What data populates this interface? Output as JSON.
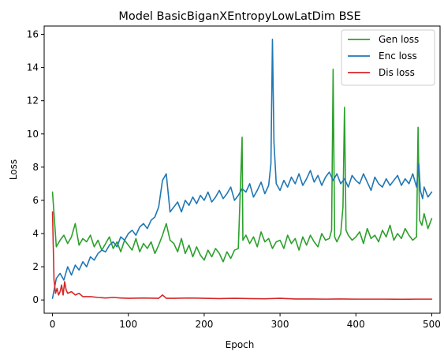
{
  "chart_data": {
    "type": "line",
    "title": "Model BasicBiganXEntropyLowLatDim BSE",
    "xlabel": "Epoch",
    "ylabel": "Loss",
    "xlim": [
      -11,
      511
    ],
    "ylim": [
      -0.8,
      16.5
    ],
    "xticks": [
      0,
      100,
      200,
      300,
      400,
      500
    ],
    "yticks": [
      0,
      2,
      4,
      6,
      8,
      10,
      12,
      14,
      16
    ],
    "grid": false,
    "legend_position": "top-right",
    "series": [
      {
        "name": "Gen loss",
        "color": "#2ca02c",
        "x": [
          0,
          5,
          10,
          15,
          20,
          25,
          30,
          35,
          40,
          45,
          50,
          55,
          60,
          65,
          70,
          75,
          80,
          85,
          90,
          95,
          100,
          105,
          110,
          115,
          120,
          125,
          130,
          135,
          140,
          145,
          150,
          155,
          160,
          165,
          170,
          175,
          180,
          185,
          190,
          195,
          200,
          205,
          210,
          215,
          220,
          225,
          230,
          235,
          240,
          245,
          250,
          251,
          255,
          260,
          265,
          270,
          275,
          280,
          285,
          290,
          295,
          300,
          305,
          310,
          315,
          320,
          325,
          330,
          335,
          340,
          345,
          350,
          355,
          360,
          365,
          368,
          370,
          372,
          375,
          380,
          383,
          385,
          387,
          390,
          395,
          400,
          405,
          410,
          415,
          420,
          425,
          430,
          435,
          440,
          445,
          450,
          455,
          460,
          465,
          470,
          475,
          480,
          482,
          484,
          487,
          490,
          495,
          500
        ],
        "y": [
          6.5,
          3.2,
          3.6,
          3.9,
          3.4,
          3.8,
          4.6,
          3.3,
          3.7,
          3.5,
          3.9,
          3.2,
          3.6,
          3.0,
          3.4,
          3.8,
          3.1,
          3.5,
          2.9,
          3.6,
          3.3,
          3.0,
          3.7,
          2.9,
          3.4,
          3.1,
          3.5,
          2.8,
          3.3,
          3.9,
          4.6,
          3.6,
          3.4,
          2.9,
          3.7,
          2.8,
          3.3,
          2.6,
          3.2,
          2.7,
          2.4,
          3.0,
          2.6,
          3.1,
          2.8,
          2.3,
          2.9,
          2.5,
          3.0,
          3.1,
          9.8,
          3.6,
          3.9,
          3.4,
          3.8,
          3.2,
          4.1,
          3.5,
          3.7,
          3.1,
          3.5,
          3.6,
          3.1,
          3.9,
          3.4,
          3.7,
          3.0,
          3.8,
          3.3,
          3.9,
          3.5,
          3.2,
          4.0,
          3.6,
          3.7,
          4.2,
          13.9,
          3.8,
          3.5,
          4.0,
          5.6,
          11.6,
          4.2,
          3.9,
          3.6,
          3.8,
          4.1,
          3.4,
          4.3,
          3.7,
          3.9,
          3.5,
          4.2,
          3.8,
          4.5,
          3.6,
          4.0,
          3.7,
          4.3,
          3.9,
          3.6,
          3.8,
          10.4,
          4.8,
          4.5,
          5.2,
          4.3,
          4.9
        ]
      },
      {
        "name": "Enc loss",
        "color": "#1f77b4",
        "x": [
          0,
          5,
          10,
          15,
          20,
          25,
          30,
          35,
          40,
          45,
          50,
          55,
          60,
          65,
          70,
          75,
          80,
          85,
          90,
          95,
          100,
          105,
          110,
          115,
          120,
          125,
          130,
          135,
          140,
          145,
          150,
          155,
          160,
          165,
          170,
          175,
          180,
          185,
          190,
          195,
          200,
          205,
          210,
          215,
          220,
          225,
          230,
          235,
          240,
          245,
          250,
          255,
          260,
          265,
          270,
          275,
          280,
          285,
          288,
          290,
          292,
          295,
          300,
          305,
          310,
          315,
          320,
          325,
          330,
          335,
          340,
          345,
          350,
          355,
          360,
          365,
          370,
          375,
          380,
          385,
          390,
          395,
          400,
          405,
          410,
          415,
          420,
          425,
          430,
          435,
          440,
          445,
          450,
          455,
          460,
          465,
          470,
          475,
          480,
          483,
          485,
          488,
          490,
          495,
          500
        ],
        "y": [
          0.1,
          1.3,
          1.6,
          1.2,
          2.0,
          1.5,
          2.1,
          1.8,
          2.3,
          2.0,
          2.6,
          2.4,
          2.8,
          3.0,
          2.9,
          3.3,
          3.5,
          3.2,
          3.8,
          3.6,
          4.0,
          4.2,
          3.9,
          4.4,
          4.6,
          4.3,
          4.8,
          5.0,
          5.6,
          7.2,
          7.6,
          5.3,
          5.6,
          5.9,
          5.3,
          6.0,
          5.7,
          6.2,
          5.8,
          6.3,
          6.0,
          6.5,
          5.9,
          6.2,
          6.6,
          6.1,
          6.4,
          6.8,
          6.0,
          6.3,
          6.7,
          6.5,
          7.0,
          6.2,
          6.6,
          7.1,
          6.4,
          6.9,
          8.2,
          15.7,
          9.5,
          7.0,
          6.6,
          7.2,
          6.8,
          7.4,
          7.0,
          7.6,
          6.9,
          7.3,
          7.8,
          7.1,
          7.5,
          6.9,
          7.4,
          7.7,
          7.2,
          7.6,
          7.0,
          7.3,
          6.8,
          7.5,
          7.2,
          7.0,
          7.6,
          7.1,
          6.6,
          7.4,
          7.0,
          6.8,
          7.3,
          6.9,
          7.2,
          7.5,
          6.9,
          7.3,
          7.0,
          7.6,
          6.8,
          8.2,
          6.6,
          6.1,
          6.8,
          6.2,
          6.5
        ]
      },
      {
        "name": "Dis loss",
        "color": "#d62728",
        "x": [
          0,
          2,
          4,
          6,
          8,
          10,
          12,
          14,
          16,
          18,
          20,
          25,
          30,
          35,
          40,
          50,
          60,
          70,
          80,
          90,
          100,
          120,
          140,
          145,
          150,
          160,
          180,
          200,
          220,
          240,
          260,
          280,
          300,
          320,
          340,
          360,
          380,
          400,
          420,
          440,
          460,
          480,
          500
        ],
        "y": [
          5.3,
          1.2,
          0.4,
          0.7,
          0.3,
          0.5,
          0.9,
          0.3,
          1.1,
          0.6,
          0.4,
          0.5,
          0.3,
          0.4,
          0.2,
          0.2,
          0.15,
          0.12,
          0.15,
          0.12,
          0.1,
          0.12,
          0.1,
          0.3,
          0.1,
          0.1,
          0.12,
          0.1,
          0.08,
          0.1,
          0.08,
          0.07,
          0.1,
          0.06,
          0.06,
          0.05,
          0.06,
          0.05,
          0.05,
          0.05,
          0.04,
          0.05,
          0.05
        ]
      }
    ]
  }
}
